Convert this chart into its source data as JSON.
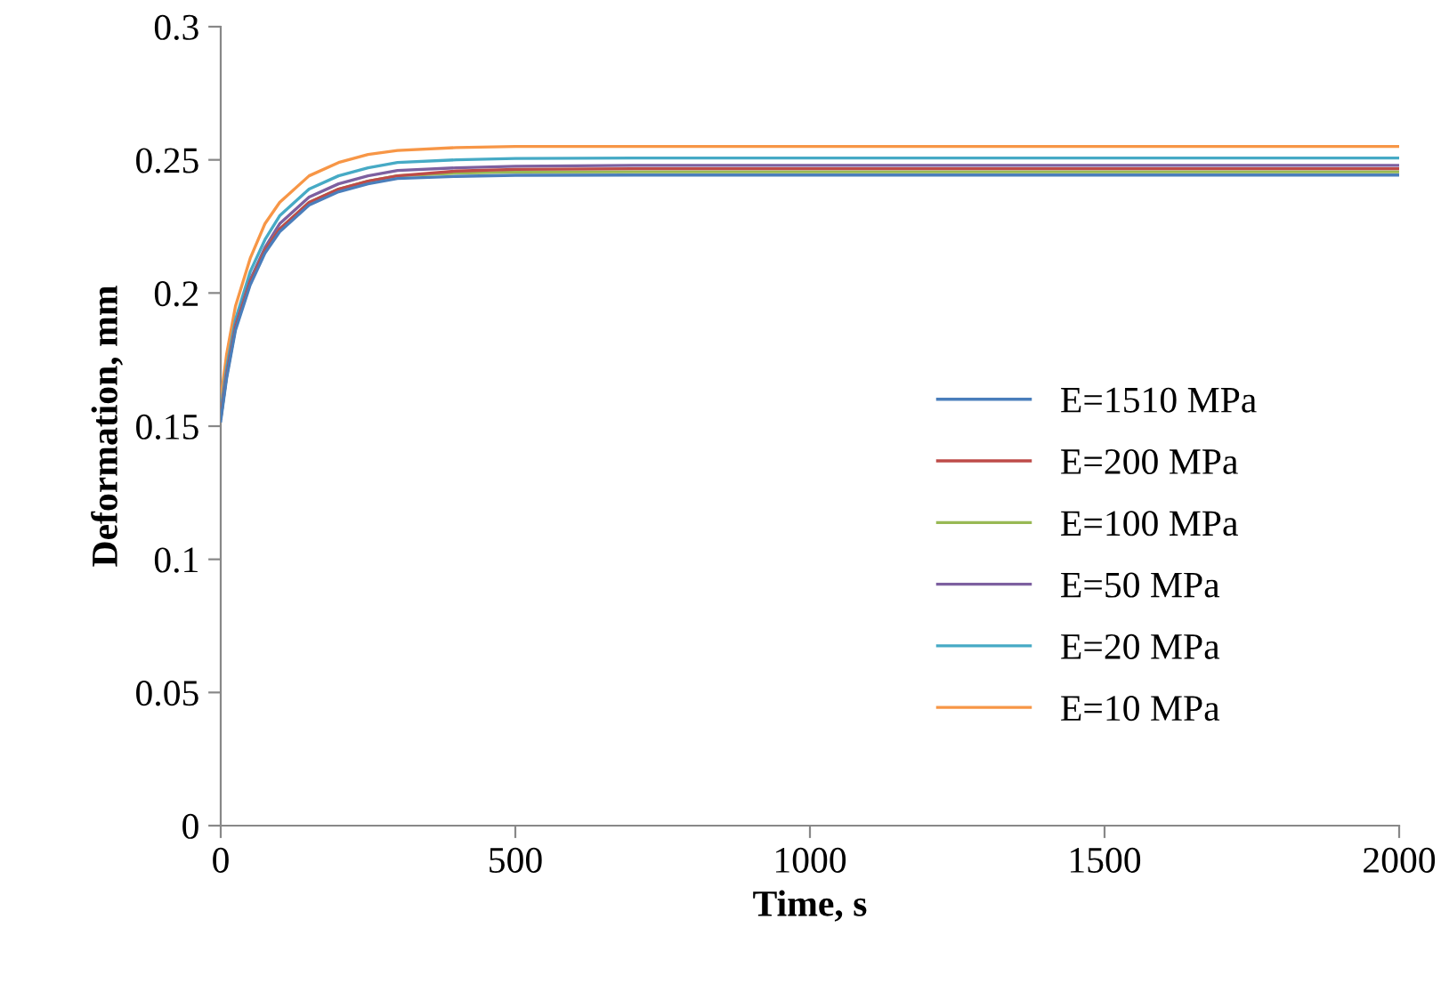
{
  "chart_data": {
    "type": "line",
    "xlabel": "Time, s",
    "ylabel": "Deformation, mm",
    "x": [
      0,
      10,
      25,
      50,
      75,
      100,
      150,
      200,
      250,
      300,
      400,
      500,
      700,
      1000,
      1500,
      2000
    ],
    "series": [
      {
        "name": "E=1510 MPa",
        "color": "#4a7ebb",
        "values": [
          0.152,
          0.168,
          0.186,
          0.203,
          0.215,
          0.223,
          0.233,
          0.238,
          0.241,
          0.243,
          0.2438,
          0.2442,
          0.2443,
          0.2443,
          0.2443,
          0.2443
        ]
      },
      {
        "name": "E=200 MPa",
        "color": "#be4b48",
        "values": [
          0.153,
          0.169,
          0.187,
          0.204,
          0.216,
          0.224,
          0.234,
          0.239,
          0.242,
          0.244,
          0.2458,
          0.2464,
          0.2467,
          0.2467,
          0.2467,
          0.2467
        ]
      },
      {
        "name": "E=100 MPa",
        "color": "#98b954",
        "values": [
          0.153,
          0.169,
          0.187,
          0.204,
          0.216,
          0.224,
          0.234,
          0.239,
          0.242,
          0.244,
          0.245,
          0.2454,
          0.2455,
          0.2455,
          0.2455,
          0.2455
        ]
      },
      {
        "name": "E=50 MPa",
        "color": "#7d60a0",
        "values": [
          0.154,
          0.17,
          0.188,
          0.205,
          0.217,
          0.226,
          0.236,
          0.241,
          0.244,
          0.246,
          0.247,
          0.2476,
          0.2479,
          0.2479,
          0.2479,
          0.2479
        ]
      },
      {
        "name": "E=20 MPa",
        "color": "#46aac5",
        "values": [
          0.156,
          0.172,
          0.19,
          0.208,
          0.22,
          0.229,
          0.239,
          0.244,
          0.247,
          0.249,
          0.25,
          0.2505,
          0.2507,
          0.2507,
          0.2507,
          0.2507
        ]
      },
      {
        "name": "E=10 MPa",
        "color": "#f79646",
        "values": [
          0.16,
          0.177,
          0.195,
          0.213,
          0.226,
          0.234,
          0.244,
          0.249,
          0.252,
          0.2535,
          0.2546,
          0.255,
          0.255,
          0.255,
          0.255,
          0.255
        ]
      }
    ],
    "xlim": [
      0,
      2000
    ],
    "xticks": [
      0,
      500,
      1000,
      1500,
      2000
    ],
    "ylim": [
      0,
      0.3
    ],
    "yticks": [
      {
        "value": 0,
        "label": "0"
      },
      {
        "value": 0.05,
        "label": "0.05"
      },
      {
        "value": 0.1,
        "label": "0.1"
      },
      {
        "value": 0.15,
        "label": "0.15"
      },
      {
        "value": 0.2,
        "label": "0.2"
      },
      {
        "value": 0.25,
        "label": "0.25"
      },
      {
        "value": 0.3,
        "label": "0.3"
      }
    ],
    "legend": "right",
    "grid": false
  }
}
